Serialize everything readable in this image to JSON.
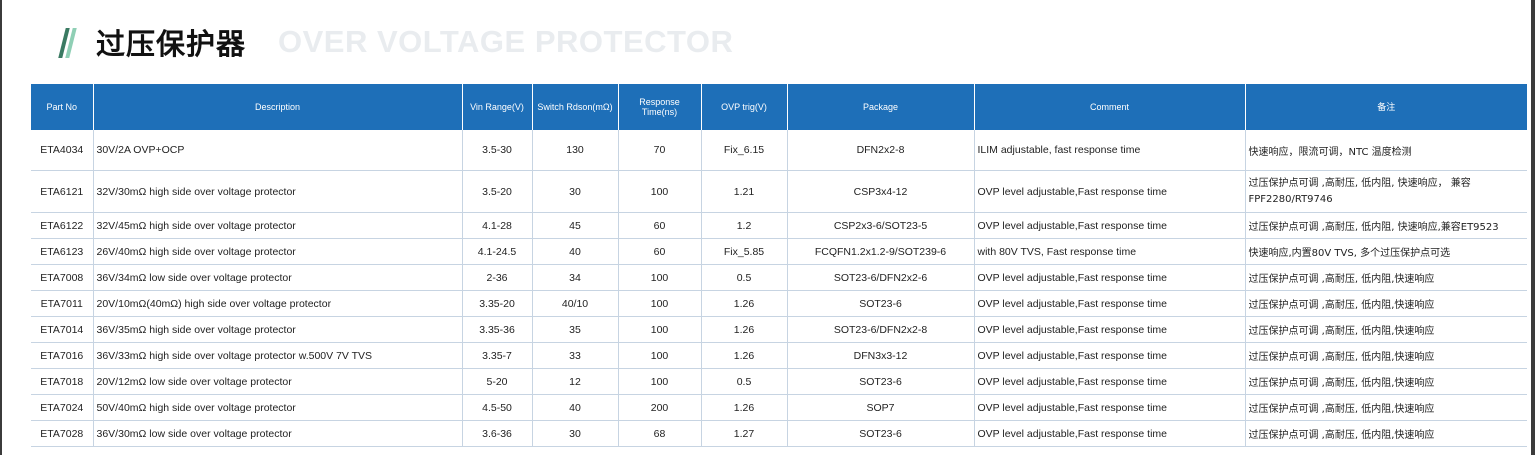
{
  "header": {
    "title_cn": "过压保护器",
    "title_en": "OVER VOLTAGE PROTECTOR"
  },
  "table": {
    "columns": [
      "Part No",
      "Description",
      "Vin Range(V)",
      "Switch Rdson(mΩ)",
      "Response Time(ns)",
      "OVP trig(V)",
      "Package",
      "Comment",
      "备注"
    ],
    "rows": [
      [
        "ETA4034",
        "30V/2A OVP+OCP",
        "3.5-30",
        "130",
        "70",
        "Fix_6.15",
        "DFN2x2-8",
        "ILIM adjustable, fast response time",
        "快速响应，限流可调，NTC  温度检测"
      ],
      [
        "ETA6121",
        "32V/30mΩ  high  side  over  voltage  protector",
        "3.5-20",
        "30",
        "100",
        "1.21",
        "CSP3x4-12",
        "OVP   level   adjustable,Fast   response   time",
        "过压保护点可调 ,高耐压, 低内阻, 快速响应， 兼容  FPF2280/RT9746"
      ],
      [
        "ETA6122",
        "32V/45mΩ  high  side  over  voltage  protector",
        "4.1-28",
        "45",
        "60",
        "1.2",
        "CSP2x3-6/SOT23-5",
        "OVP   level   adjustable,Fast   response   time",
        "过压保护点可调 ,高耐压, 低内阻, 快速响应,兼容ET9523"
      ],
      [
        "ETA6123",
        "26V/40mΩ  high  side  over  voltage  protector",
        "4.1-24.5",
        "40",
        "60",
        "Fix_5.85",
        "FCQFN1.2x1.2-9/SOT239-6",
        "with   80V   TVS,   Fast   response     time",
        "快速响应,内置80V  TVS,  多个过压保护点可选"
      ],
      [
        "ETA7008",
        "36V/34mΩ  low  side  over  voltage  protector",
        "2-36",
        "34",
        "100",
        "0.5",
        "SOT23-6/DFN2x2-6",
        "OVP   level   adjustable,Fast   response   time",
        "过压保护点可调 ,高耐压, 低内阻,快速响应"
      ],
      [
        "ETA7011",
        "20V/10mΩ(40mΩ)   high  side  over  voltage  protector",
        "3.35-20",
        "40/10",
        "100",
        "1.26",
        "SOT23-6",
        "OVP   level   adjustable,Fast   response   time",
        "过压保护点可调 ,高耐压, 低内阻,快速响应"
      ],
      [
        "ETA7014",
        "36V/35mΩ  high  side  over  voltage  protector",
        "3.35-36",
        "35",
        "100",
        "1.26",
        "SOT23-6/DFN2x2-8",
        "OVP   level   adjustable,Fast   response   time",
        "过压保护点可调 ,高耐压, 低内阻,快速响应"
      ],
      [
        "ETA7016",
        "36V/33mΩ  high  side  over  voltage  protector  w.500V  7V  TVS",
        "3.35-7",
        "33",
        "100",
        "1.26",
        "DFN3x3-12",
        "OVP   level   adjustable,Fast   response   time",
        "过压保护点可调 ,高耐压, 低内阻,快速响应"
      ],
      [
        "ETA7018",
        "20V/12mΩ  low  side  over  voltage  protector",
        "5-20",
        "12",
        "100",
        "0.5",
        "SOT23-6",
        "OVP   level   adjustable,Fast   response   time",
        "过压保护点可调 ,高耐压, 低内阻,快速响应"
      ],
      [
        "ETA7024",
        "50V/40mΩ  high  side  over  voltage  protector",
        "4.5-50",
        "40",
        "200",
        "1.26",
        "SOP7",
        "OVP   level   adjustable,Fast   response   time",
        "过压保护点可调 ,高耐压, 低内阻,快速响应"
      ],
      [
        "ETA7028",
        "36V/30mΩ  low  side  over  voltage  protector",
        "3.6-36",
        "30",
        "68",
        "1.27",
        "SOT23-6",
        "OVP   level   adjustable,Fast   response   time",
        "过压保护点可调 ,高耐压, 低内阻,快速响应"
      ]
    ]
  },
  "colors": {
    "header_bg": "#1e6fb8",
    "accent_dark": "#3a7a62",
    "accent_light": "#8fcfb5",
    "title_en": "#e9ecef"
  }
}
